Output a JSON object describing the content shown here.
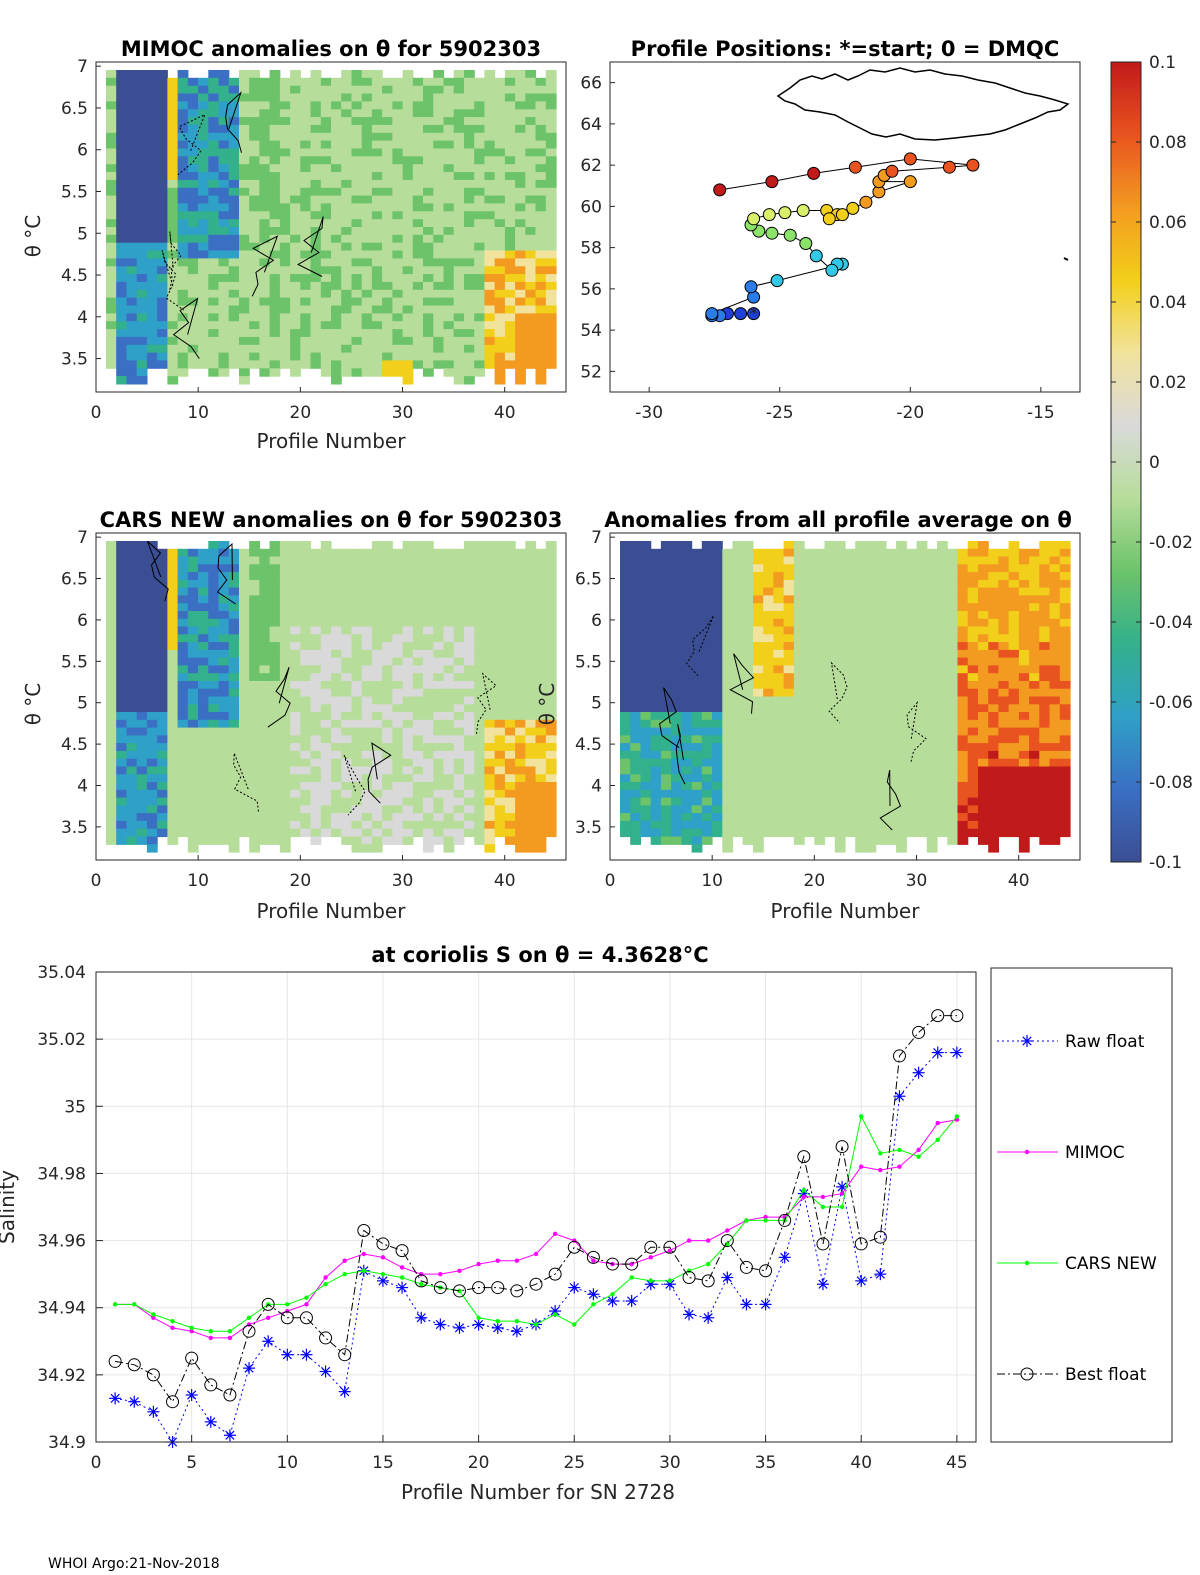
{
  "footer": "WHOI Argo:21-Nov-2018",
  "colorbar": {
    "ticks": [
      "0.1",
      "0.08",
      "0.06",
      "0.04",
      "0.02",
      "0",
      "-0.02",
      "-0.04",
      "-0.06",
      "-0.08",
      "-0.1"
    ],
    "stops": [
      "#3b4e94",
      "#3a6fc4",
      "#2fa0c7",
      "#33b08c",
      "#6cc36a",
      "#b7dd9a",
      "#d9d9d9",
      "#f1e39c",
      "#f2cf1a",
      "#f39a20",
      "#e8531f",
      "#c11a1a"
    ]
  },
  "map_panel": {
    "title": "Profile Positions: *=start; 0 = DMQC",
    "xticks": [
      "-30",
      "-25",
      "-20",
      "-15"
    ],
    "yticks": [
      "66",
      "64",
      "62",
      "60",
      "58",
      "56",
      "54",
      "52"
    ],
    "xlim": [
      -31.5,
      -13.5
    ],
    "ylim": [
      51,
      67
    ],
    "track": [
      [
        -26.0,
        54.8
      ],
      [
        -26.5,
        54.8
      ],
      [
        -27.0,
        54.8
      ],
      [
        -27.3,
        54.7
      ],
      [
        -27.6,
        54.7
      ],
      [
        -27.6,
        54.8
      ],
      [
        -26.0,
        55.6
      ],
      [
        -26.1,
        56.1
      ],
      [
        -25.1,
        56.4
      ],
      [
        -22.6,
        57.2
      ],
      [
        -22.8,
        57.2
      ],
      [
        -23.0,
        56.9
      ],
      [
        -23.6,
        57.6
      ],
      [
        -24.0,
        58.2
      ],
      [
        -24.6,
        58.6
      ],
      [
        -25.3,
        58.7
      ],
      [
        -25.8,
        58.8
      ],
      [
        -26.1,
        59.1
      ],
      [
        -26.0,
        59.4
      ],
      [
        -25.4,
        59.6
      ],
      [
        -24.8,
        59.7
      ],
      [
        -24.1,
        59.8
      ],
      [
        -23.2,
        59.8
      ],
      [
        -22.8,
        59.6
      ],
      [
        -23.1,
        59.4
      ],
      [
        -22.6,
        59.6
      ],
      [
        -22.2,
        59.9
      ],
      [
        -21.7,
        60.2
      ],
      [
        -21.2,
        60.7
      ],
      [
        -20.0,
        61.2
      ],
      [
        -21.2,
        61.2
      ],
      [
        -21.0,
        61.5
      ],
      [
        -20.7,
        61.7
      ],
      [
        -18.5,
        61.9
      ],
      [
        -17.6,
        62.0
      ],
      [
        -20.0,
        62.3
      ],
      [
        -22.1,
        61.9
      ],
      [
        -23.7,
        61.6
      ],
      [
        -25.3,
        61.2
      ],
      [
        -27.3,
        60.8
      ]
    ]
  },
  "chart_data": [
    {
      "type": "heatmap",
      "title": "MIMOC anomalies on θ  for 5902303",
      "xlabel": "Profile Number",
      "ylabel": "θ °C",
      "xticks": [
        "0",
        "10",
        "20",
        "30",
        "40"
      ],
      "yticks": [
        "7",
        "6.5",
        "6",
        "5.5",
        "5",
        "4.5",
        "4",
        "3.5"
      ],
      "xlim": [
        0,
        46
      ],
      "ylim": [
        3.1,
        7.05
      ]
    },
    {
      "type": "heatmap",
      "title": "CARS NEW anomalies on θ for 5902303",
      "xlabel": "Profile Number",
      "ylabel": "θ °C",
      "xticks": [
        "0",
        "10",
        "20",
        "30",
        "40"
      ],
      "yticks": [
        "7",
        "6.5",
        "6",
        "5.5",
        "5",
        "4.5",
        "4",
        "3.5"
      ],
      "xlim": [
        0,
        46
      ],
      "ylim": [
        3.1,
        7.05
      ]
    },
    {
      "type": "heatmap",
      "title": "Anomalies from all profile average on θ",
      "xlabel": "Profile Number",
      "ylabel": "θ °C",
      "xticks": [
        "0",
        "10",
        "20",
        "30",
        "40"
      ],
      "yticks": [
        "7",
        "6.5",
        "6",
        "5.5",
        "5",
        "4.5",
        "4",
        "3.5"
      ],
      "xlim": [
        0,
        46
      ],
      "ylim": [
        3.1,
        7.05
      ]
    },
    {
      "type": "line",
      "title": "at coriolis S on θ = 4.3628°C",
      "xlabel": "Profile Number for SN 2728",
      "ylabel": "Salinity",
      "xlim": [
        0,
        46
      ],
      "ylim": [
        34.9,
        35.04
      ],
      "xticks": [
        "0",
        "5",
        "10",
        "15",
        "20",
        "25",
        "30",
        "35",
        "40",
        "45"
      ],
      "yticks": [
        "35.04",
        "35.02",
        "35",
        "34.98",
        "34.96",
        "34.94",
        "34.92",
        "34.9"
      ],
      "x": [
        1,
        2,
        3,
        4,
        5,
        6,
        7,
        8,
        9,
        10,
        11,
        12,
        13,
        14,
        15,
        16,
        17,
        18,
        19,
        20,
        21,
        22,
        23,
        24,
        25,
        26,
        27,
        28,
        29,
        30,
        31,
        32,
        33,
        34,
        35,
        36,
        37,
        38,
        39,
        40,
        41,
        42,
        43,
        44,
        45
      ],
      "series": [
        {
          "name": "Raw float",
          "color": "#0000ff",
          "values": [
            34.913,
            34.912,
            34.909,
            34.9,
            34.914,
            34.906,
            34.902,
            34.922,
            34.93,
            34.926,
            34.926,
            34.921,
            34.915,
            34.951,
            34.948,
            34.946,
            34.937,
            34.935,
            34.934,
            34.935,
            34.934,
            34.933,
            34.935,
            34.939,
            34.946,
            34.944,
            34.942,
            34.942,
            34.947,
            34.947,
            34.938,
            34.937,
            34.949,
            34.941,
            34.941,
            34.955,
            34.974,
            34.947,
            34.976,
            34.948,
            34.95,
            35.003,
            35.01,
            35.016,
            35.016
          ]
        },
        {
          "name": "MIMOC",
          "color": "#ff00ff",
          "values": [
            34.941,
            34.941,
            34.937,
            34.934,
            34.933,
            34.931,
            34.931,
            34.935,
            34.937,
            34.939,
            34.941,
            34.949,
            34.954,
            34.956,
            34.955,
            34.952,
            34.95,
            34.95,
            34.951,
            34.953,
            34.954,
            34.954,
            34.956,
            34.962,
            34.96,
            34.954,
            34.953,
            34.953,
            34.955,
            34.957,
            34.96,
            34.96,
            34.963,
            34.966,
            34.967,
            34.967,
            34.973,
            34.973,
            34.974,
            34.982,
            34.981,
            34.982,
            34.987,
            34.995,
            34.996
          ]
        },
        {
          "name": "CARS NEW",
          "color": "#00ff00",
          "values": [
            34.941,
            34.941,
            34.938,
            34.936,
            34.934,
            34.933,
            34.933,
            34.937,
            34.941,
            34.941,
            34.943,
            34.947,
            34.95,
            34.951,
            34.95,
            34.949,
            34.947,
            34.946,
            34.945,
            34.937,
            34.936,
            34.936,
            34.935,
            34.938,
            34.935,
            34.941,
            34.944,
            34.949,
            34.948,
            34.948,
            34.951,
            34.953,
            34.959,
            34.966,
            34.966,
            34.966,
            34.975,
            34.97,
            34.97,
            34.997,
            34.986,
            34.987,
            34.985,
            34.99,
            34.997
          ]
        },
        {
          "name": "Best float",
          "color": "#000000",
          "values": [
            34.924,
            34.923,
            34.92,
            34.912,
            34.925,
            34.917,
            34.914,
            34.933,
            34.941,
            34.937,
            34.937,
            34.931,
            34.926,
            34.963,
            34.959,
            34.957,
            34.948,
            34.946,
            34.945,
            34.946,
            34.946,
            34.945,
            34.947,
            34.95,
            34.958,
            34.955,
            34.953,
            34.953,
            34.958,
            34.958,
            34.949,
            34.948,
            34.96,
            34.952,
            34.951,
            34.966,
            34.985,
            34.959,
            34.988,
            34.959,
            34.961,
            35.015,
            35.022,
            35.027,
            35.027
          ]
        }
      ]
    }
  ]
}
